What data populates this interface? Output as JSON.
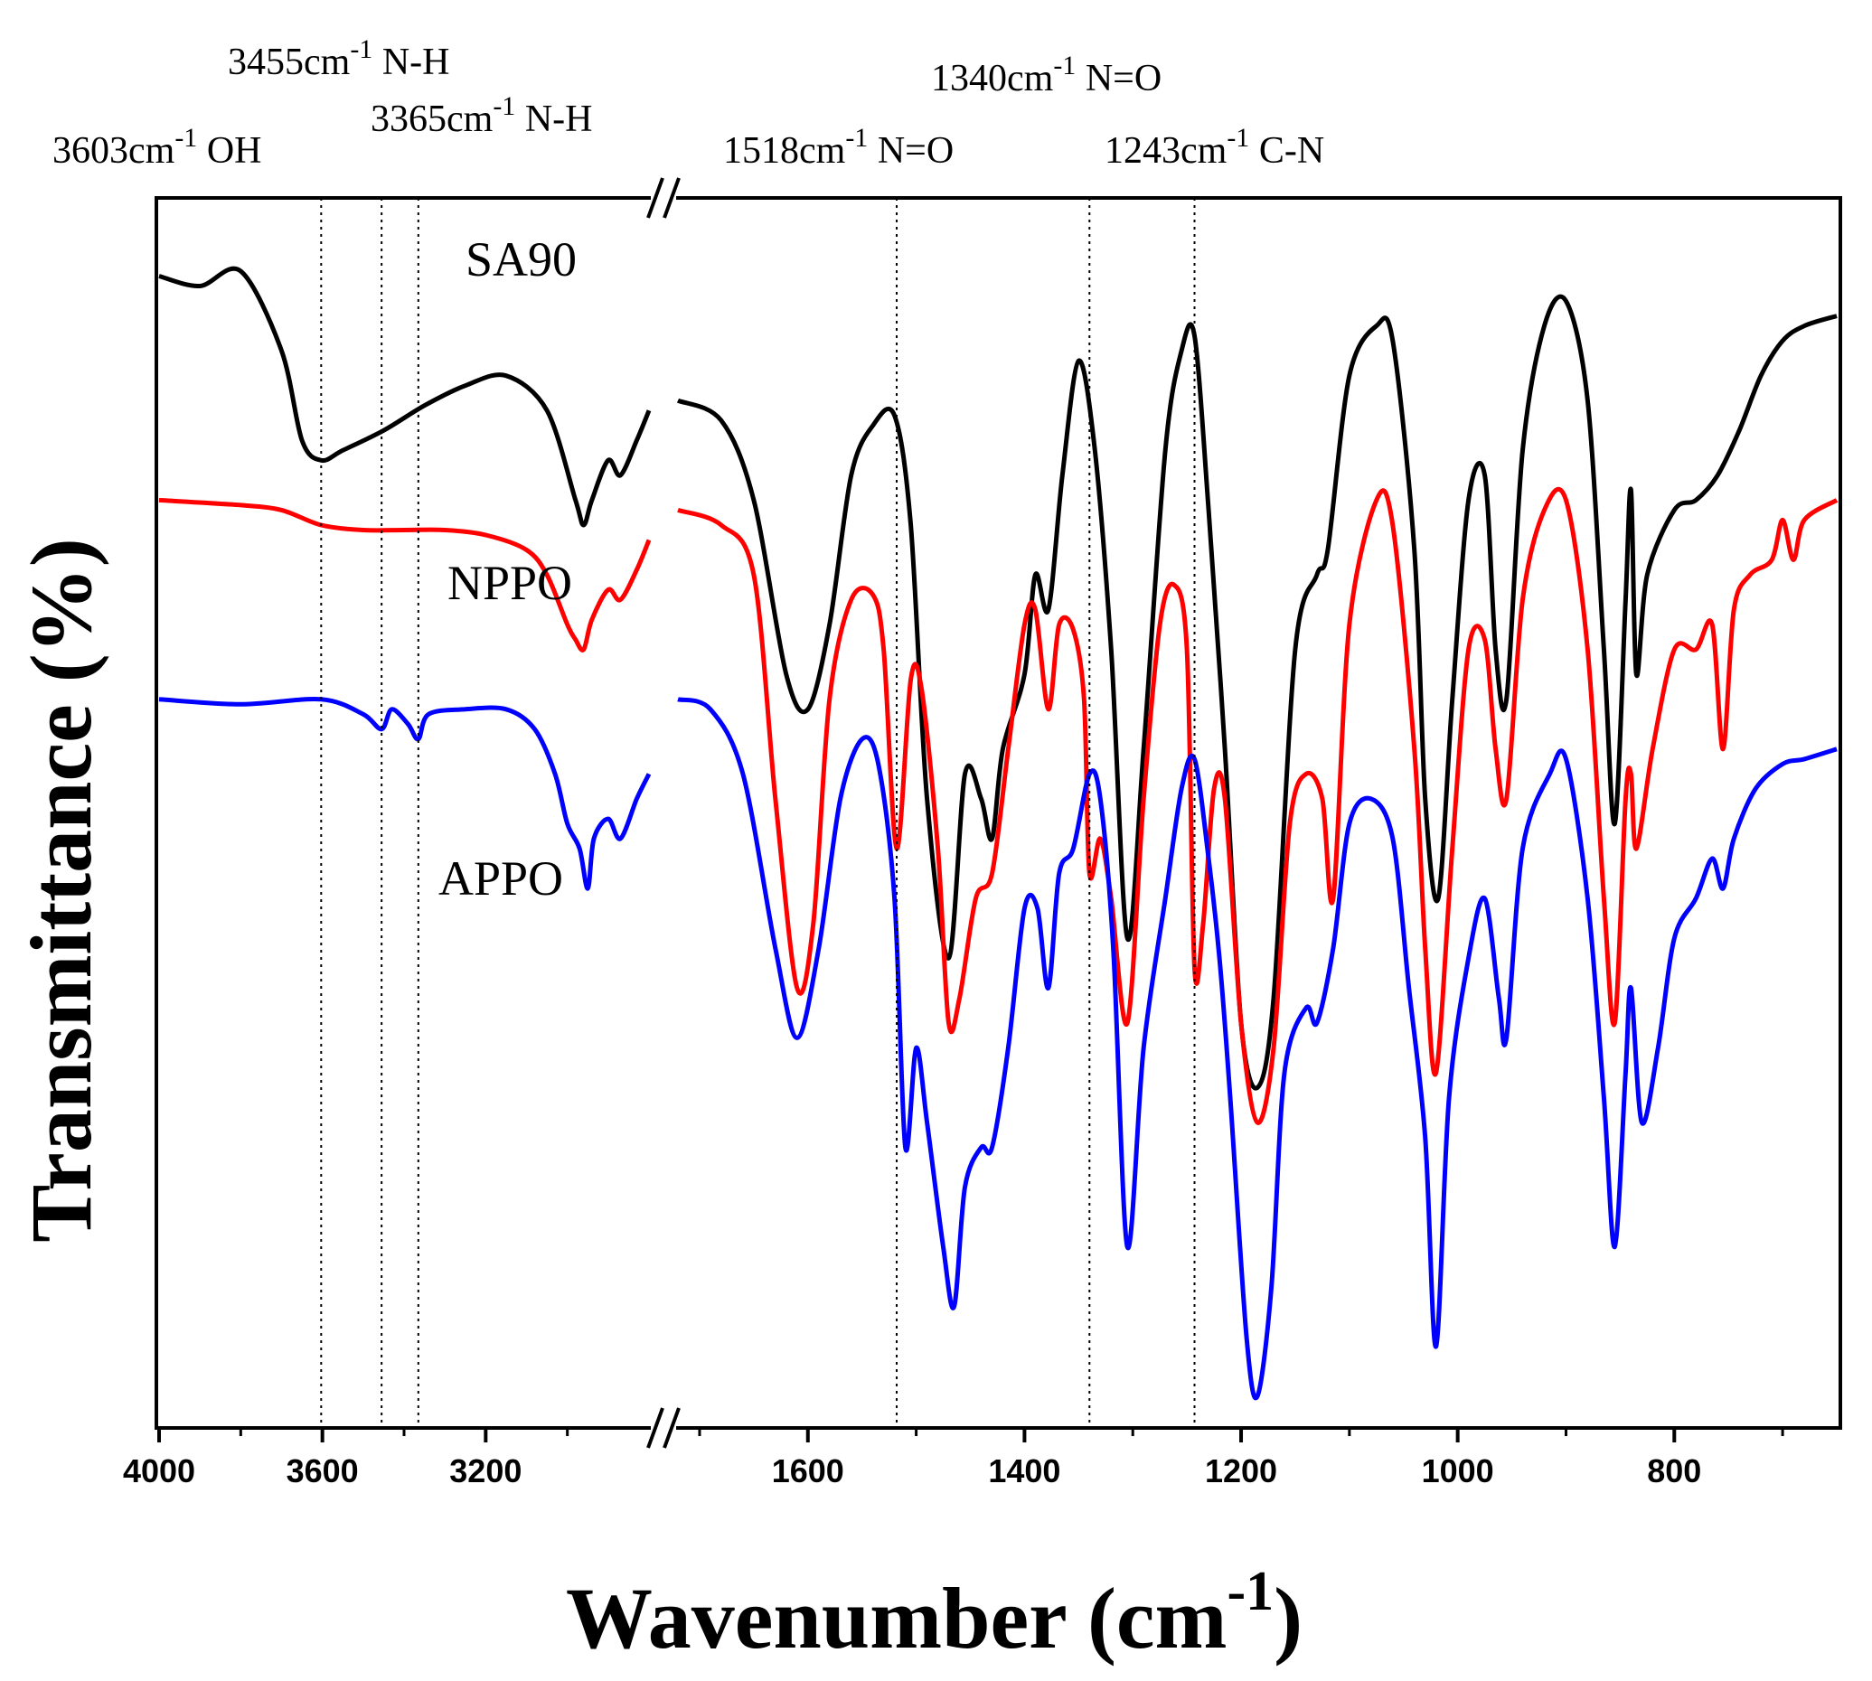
{
  "chart_data": {
    "type": "line",
    "xlabel": "Wavenumber (cm",
    "xlabel_sup": "-1",
    "xlabel_end": ")",
    "ylabel": "Transmittance (%)",
    "x_reversed": true,
    "x_axis_break": true,
    "left_xlim": [
      4000,
      2800
    ],
    "right_xlim": [
      1720,
      650
    ],
    "grid": false,
    "left_ticks": [
      "4000",
      "3600",
      "3200"
    ],
    "right_ticks": [
      "1600",
      "1400",
      "1200",
      "1000",
      "800"
    ],
    "annotations": [
      {
        "wn": 3603,
        "text": "3603cm",
        "sup": "-1",
        "suffix": " OH"
      },
      {
        "wn": 3455,
        "text": "3455cm",
        "sup": "-1",
        "suffix": " N-H"
      },
      {
        "wn": 3365,
        "text": "3365cm",
        "sup": "-1",
        "suffix": " N-H"
      },
      {
        "wn": 1518,
        "text": "1518cm",
        "sup": "-1",
        "suffix": " N=O"
      },
      {
        "wn": 1340,
        "text": "1340cm",
        "sup": "-1",
        "suffix": " N=O"
      },
      {
        "wn": 1243,
        "text": "1243cm",
        "sup": "-1",
        "suffix": " C-N"
      }
    ],
    "series": [
      {
        "name": "SA90",
        "color": "#000000",
        "left": [
          [
            4000,
            95
          ],
          [
            3900,
            93
          ],
          [
            3800,
            96
          ],
          [
            3700,
            80
          ],
          [
            3650,
            62
          ],
          [
            3603,
            58
          ],
          [
            3550,
            60
          ],
          [
            3450,
            64
          ],
          [
            3350,
            69
          ],
          [
            3250,
            73
          ],
          [
            3150,
            75
          ],
          [
            3050,
            68
          ],
          [
            2980,
            50
          ],
          [
            2960,
            45
          ],
          [
            2940,
            50
          ],
          [
            2900,
            58
          ],
          [
            2870,
            55
          ],
          [
            2830,
            62
          ],
          [
            2800,
            68
          ]
        ],
        "right": [
          [
            1720,
            70
          ],
          [
            1680,
            66
          ],
          [
            1650,
            50
          ],
          [
            1620,
            15
          ],
          [
            1600,
            8
          ],
          [
            1580,
            25
          ],
          [
            1560,
            55
          ],
          [
            1540,
            65
          ],
          [
            1520,
            67
          ],
          [
            1505,
            45
          ],
          [
            1490,
            -10
          ],
          [
            1470,
            -42
          ],
          [
            1455,
            -5
          ],
          [
            1440,
            -10
          ],
          [
            1430,
            -18
          ],
          [
            1420,
            0
          ],
          [
            1400,
            15
          ],
          [
            1390,
            35
          ],
          [
            1378,
            28
          ],
          [
            1365,
            55
          ],
          [
            1350,
            78
          ],
          [
            1335,
            60
          ],
          [
            1320,
            20
          ],
          [
            1305,
            -38
          ],
          [
            1290,
            0
          ],
          [
            1270,
            60
          ],
          [
            1255,
            80
          ],
          [
            1243,
            83
          ],
          [
            1230,
            48
          ],
          [
            1215,
            0
          ],
          [
            1200,
            -55
          ],
          [
            1185,
            -68
          ],
          [
            1170,
            -50
          ],
          [
            1150,
            20
          ],
          [
            1130,
            35
          ],
          [
            1120,
            40
          ],
          [
            1100,
            75
          ],
          [
            1075,
            85
          ],
          [
            1060,
            82
          ],
          [
            1040,
            40
          ],
          [
            1030,
            -10
          ],
          [
            1018,
            -30
          ],
          [
            1005,
            10
          ],
          [
            990,
            50
          ],
          [
            975,
            55
          ],
          [
            965,
            20
          ],
          [
            955,
            10
          ],
          [
            940,
            60
          ],
          [
            920,
            85
          ],
          [
            900,
            90
          ],
          [
            880,
            70
          ],
          [
            865,
            20
          ],
          [
            855,
            -15
          ],
          [
            845,
            30
          ],
          [
            840,
            52
          ],
          [
            835,
            15
          ],
          [
            825,
            35
          ],
          [
            800,
            48
          ],
          [
            780,
            50
          ],
          [
            760,
            55
          ],
          [
            740,
            64
          ],
          [
            720,
            75
          ],
          [
            700,
            82
          ],
          [
            680,
            85
          ],
          [
            650,
            87
          ]
        ]
      },
      {
        "name": "NPPO",
        "color": "#ff0000",
        "left": [
          [
            4000,
            50
          ],
          [
            3800,
            49
          ],
          [
            3700,
            48
          ],
          [
            3603,
            45
          ],
          [
            3500,
            44
          ],
          [
            3400,
            44
          ],
          [
            3300,
            44
          ],
          [
            3200,
            43
          ],
          [
            3100,
            40
          ],
          [
            3050,
            35
          ],
          [
            3000,
            25
          ],
          [
            2980,
            22
          ],
          [
            2960,
            20
          ],
          [
            2940,
            26
          ],
          [
            2900,
            32
          ],
          [
            2870,
            30
          ],
          [
            2830,
            36
          ],
          [
            2800,
            42
          ]
        ],
        "right": [
          [
            1720,
            48
          ],
          [
            1680,
            45
          ],
          [
            1650,
            35
          ],
          [
            1630,
            -10
          ],
          [
            1610,
            -48
          ],
          [
            1595,
            -35
          ],
          [
            1580,
            10
          ],
          [
            1560,
            30
          ],
          [
            1540,
            31
          ],
          [
            1530,
            20
          ],
          [
            1518,
            -20
          ],
          [
            1505,
            14
          ],
          [
            1495,
            12
          ],
          [
            1480,
            -20
          ],
          [
            1470,
            -55
          ],
          [
            1460,
            -50
          ],
          [
            1445,
            -30
          ],
          [
            1430,
            -25
          ],
          [
            1415,
            0
          ],
          [
            1400,
            25
          ],
          [
            1390,
            28
          ],
          [
            1378,
            8
          ],
          [
            1368,
            25
          ],
          [
            1355,
            24
          ],
          [
            1345,
            10
          ],
          [
            1340,
            -25
          ],
          [
            1330,
            -18
          ],
          [
            1320,
            -30
          ],
          [
            1305,
            -55
          ],
          [
            1290,
            -10
          ],
          [
            1275,
            25
          ],
          [
            1262,
            33
          ],
          [
            1250,
            20
          ],
          [
            1243,
            -44
          ],
          [
            1235,
            -35
          ],
          [
            1225,
            -8
          ],
          [
            1215,
            -10
          ],
          [
            1200,
            -55
          ],
          [
            1185,
            -75
          ],
          [
            1170,
            -60
          ],
          [
            1155,
            -15
          ],
          [
            1140,
            -5
          ],
          [
            1125,
            -10
          ],
          [
            1115,
            -30
          ],
          [
            1100,
            25
          ],
          [
            1075,
            50
          ],
          [
            1060,
            45
          ],
          [
            1040,
            0
          ],
          [
            1030,
            -40
          ],
          [
            1020,
            -65
          ],
          [
            1005,
            -20
          ],
          [
            990,
            20
          ],
          [
            975,
            22
          ],
          [
            965,
            0
          ],
          [
            955,
            -10
          ],
          [
            940,
            30
          ],
          [
            920,
            48
          ],
          [
            900,
            50
          ],
          [
            880,
            20
          ],
          [
            865,
            -30
          ],
          [
            855,
            -55
          ],
          [
            845,
            -10
          ],
          [
            840,
            -5
          ],
          [
            835,
            -20
          ],
          [
            820,
            0
          ],
          [
            800,
            20
          ],
          [
            780,
            20
          ],
          [
            765,
            25
          ],
          [
            755,
            0
          ],
          [
            745,
            28
          ],
          [
            730,
            35
          ],
          [
            710,
            38
          ],
          [
            700,
            46
          ],
          [
            690,
            38
          ],
          [
            680,
            46
          ],
          [
            650,
            50
          ]
        ]
      },
      {
        "name": "APPO",
        "color": "#0000ff",
        "left": [
          [
            4000,
            10
          ],
          [
            3800,
            9
          ],
          [
            3603,
            10
          ],
          [
            3500,
            7
          ],
          [
            3455,
            4
          ],
          [
            3430,
            8
          ],
          [
            3390,
            5
          ],
          [
            3365,
            2
          ],
          [
            3340,
            7
          ],
          [
            3250,
            8
          ],
          [
            3150,
            8
          ],
          [
            3080,
            4
          ],
          [
            3030,
            -5
          ],
          [
            3000,
            -15
          ],
          [
            2970,
            -20
          ],
          [
            2950,
            -28
          ],
          [
            2935,
            -18
          ],
          [
            2900,
            -14
          ],
          [
            2870,
            -18
          ],
          [
            2830,
            -10
          ],
          [
            2800,
            -5
          ]
        ],
        "right": [
          [
            1720,
            10
          ],
          [
            1690,
            8
          ],
          [
            1660,
            -5
          ],
          [
            1630,
            -40
          ],
          [
            1610,
            -58
          ],
          [
            1590,
            -40
          ],
          [
            1570,
            -10
          ],
          [
            1550,
            2
          ],
          [
            1535,
            -3
          ],
          [
            1520,
            -30
          ],
          [
            1510,
            -80
          ],
          [
            1500,
            -60
          ],
          [
            1490,
            -75
          ],
          [
            1475,
            -100
          ],
          [
            1465,
            -112
          ],
          [
            1455,
            -88
          ],
          [
            1440,
            -80
          ],
          [
            1430,
            -80
          ],
          [
            1415,
            -60
          ],
          [
            1400,
            -32
          ],
          [
            1388,
            -32
          ],
          [
            1378,
            -48
          ],
          [
            1368,
            -25
          ],
          [
            1355,
            -20
          ],
          [
            1340,
            -5
          ],
          [
            1330,
            -10
          ],
          [
            1318,
            -40
          ],
          [
            1305,
            -100
          ],
          [
            1290,
            -60
          ],
          [
            1270,
            -30
          ],
          [
            1255,
            -8
          ],
          [
            1243,
            -2
          ],
          [
            1230,
            -22
          ],
          [
            1220,
            -42
          ],
          [
            1210,
            -70
          ],
          [
            1195,
            -118
          ],
          [
            1185,
            -130
          ],
          [
            1172,
            -108
          ],
          [
            1160,
            -65
          ],
          [
            1140,
            -52
          ],
          [
            1130,
            -55
          ],
          [
            1115,
            -40
          ],
          [
            1100,
            -15
          ],
          [
            1080,
            -10
          ],
          [
            1060,
            -18
          ],
          [
            1045,
            -48
          ],
          [
            1030,
            -78
          ],
          [
            1020,
            -120
          ],
          [
            1008,
            -70
          ],
          [
            990,
            -42
          ],
          [
            975,
            -30
          ],
          [
            962,
            -50
          ],
          [
            955,
            -58
          ],
          [
            940,
            -20
          ],
          [
            915,
            -5
          ],
          [
            900,
            -2
          ],
          [
            880,
            -30
          ],
          [
            865,
            -70
          ],
          [
            855,
            -100
          ],
          [
            845,
            -65
          ],
          [
            840,
            -48
          ],
          [
            830,
            -75
          ],
          [
            815,
            -60
          ],
          [
            800,
            -38
          ],
          [
            780,
            -30
          ],
          [
            765,
            -22
          ],
          [
            755,
            -28
          ],
          [
            745,
            -18
          ],
          [
            725,
            -8
          ],
          [
            700,
            -3
          ],
          [
            680,
            -2
          ],
          [
            650,
            0
          ]
        ]
      }
    ]
  }
}
